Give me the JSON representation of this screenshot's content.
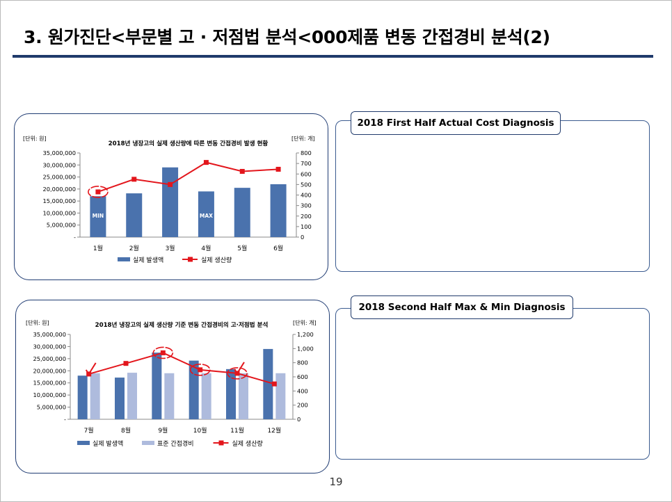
{
  "slide": {
    "title": "3. 원가진단<부문별 고 · 저점법 분석<000제품 변동 간접경비 분석(2)",
    "page_number": "19"
  },
  "diagnosis": {
    "first_half_label": "2018 First Half Actual Cost Diagnosis",
    "second_half_label": "2018 Second Half Max & Min Diagnosis"
  },
  "colors": {
    "title_rule": "#1f3a6b",
    "bar_actual": "#4a72ad",
    "bar_standard": "#aebbdd",
    "line_production": "#e3161c",
    "annotation": "#e3161c"
  },
  "chart_data": [
    {
      "type": "bar",
      "title": "2018년 냉장고의 실제 생산량에 따른 변동 간접경비 발생 현황",
      "y_left_unit": "[단위: 원]",
      "y_right_unit": "[단위: 개]",
      "categories": [
        "1월",
        "2월",
        "3월",
        "4월",
        "5월",
        "6월"
      ],
      "y_left_ticks": [
        "35,000,000",
        "30,000,000",
        "25,000,000",
        "20,000,000",
        "15,000,000",
        "10,000,000",
        "5,000,000",
        "-"
      ],
      "y_right_ticks": [
        "800",
        "700",
        "600",
        "500",
        "400",
        "300",
        "200",
        "100",
        "0"
      ],
      "ylim_left": [
        0,
        35000000
      ],
      "ylim_right": [
        0,
        800
      ],
      "series": [
        {
          "name": "실제 발생액",
          "type": "bar",
          "axis": "left",
          "values": [
            17000000,
            18200000,
            29000000,
            19000000,
            20500000,
            22000000
          ]
        },
        {
          "name": "실제 생산량",
          "type": "line",
          "axis": "right",
          "values": [
            430,
            550,
            500,
            710,
            625,
            645
          ]
        }
      ],
      "bar_annotations": [
        {
          "category_index": 0,
          "text": "MIN"
        },
        {
          "category_index": 3,
          "text": "MAX"
        }
      ],
      "circled_points": [
        0
      ],
      "legend": "bottom",
      "grid": false
    },
    {
      "type": "bar",
      "title": "2018년 냉장고의 실제 생산량 기준 변동 간접경비의 고·저점법 분석",
      "y_left_unit": "[단위: 원]",
      "y_right_unit": "[단위: 개]",
      "categories": [
        "7월",
        "8월",
        "9월",
        "10월",
        "11월",
        "12월"
      ],
      "y_left_ticks": [
        "35,000,000",
        "30,000,000",
        "25,000,000",
        "20,000,000",
        "15,000,000",
        "10,000,000",
        "5,000,000",
        "-"
      ],
      "y_right_ticks": [
        "1,200",
        "1,000",
        "800",
        "600",
        "400",
        "200",
        "0"
      ],
      "ylim_left": [
        0,
        35000000
      ],
      "ylim_right": [
        0,
        1200
      ],
      "series": [
        {
          "name": "실제 발생액",
          "type": "bar",
          "axis": "left",
          "values": [
            18000000,
            17200000,
            27500000,
            24200000,
            20700000,
            29000000
          ]
        },
        {
          "name": "표준 간접경비",
          "type": "bar",
          "axis": "left",
          "values": [
            19000000,
            19200000,
            19000000,
            19000000,
            19000000,
            19000000
          ]
        },
        {
          "name": "실제 생산량",
          "type": "line",
          "axis": "right",
          "values": [
            640,
            790,
            940,
            700,
            650,
            500
          ]
        }
      ],
      "circled_points": [
        2,
        3,
        4
      ],
      "check_marks": [
        0,
        4
      ],
      "legend": "bottom",
      "grid": false
    }
  ]
}
